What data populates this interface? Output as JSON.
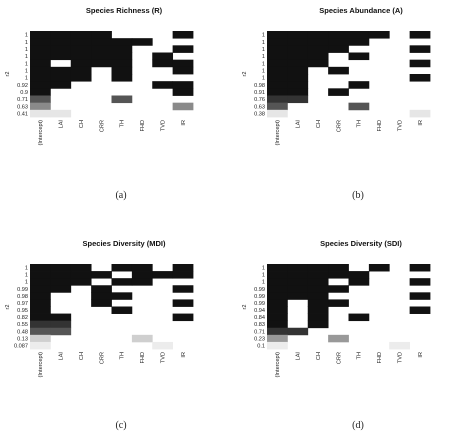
{
  "chart_data": [
    {
      "type": "heatmap",
      "title": "Species Richness (R)",
      "ylabel": "r2",
      "caption": "(a)",
      "columns": [
        "(Intercept)",
        "LAI",
        "CH",
        "CRR",
        "TH",
        "FHD",
        "TVD",
        "IR"
      ],
      "rows": [
        {
          "r2": "1",
          "tone": "#111111",
          "cells": [
            1,
            1,
            1,
            1,
            0,
            0,
            0,
            1
          ]
        },
        {
          "r2": "1",
          "tone": "#111111",
          "cells": [
            1,
            1,
            1,
            1,
            1,
            1,
            0,
            0
          ]
        },
        {
          "r2": "1",
          "tone": "#111111",
          "cells": [
            1,
            1,
            1,
            1,
            1,
            0,
            0,
            1
          ]
        },
        {
          "r2": "1",
          "tone": "#111111",
          "cells": [
            1,
            1,
            1,
            1,
            1,
            0,
            1,
            0
          ]
        },
        {
          "r2": "1",
          "tone": "#111111",
          "cells": [
            1,
            0,
            1,
            1,
            1,
            0,
            1,
            1
          ]
        },
        {
          "r2": "1",
          "tone": "#111111",
          "cells": [
            1,
            1,
            1,
            0,
            1,
            0,
            0,
            1
          ]
        },
        {
          "r2": "1",
          "tone": "#111111",
          "cells": [
            1,
            1,
            1,
            0,
            1,
            0,
            0,
            0
          ]
        },
        {
          "r2": "0.92",
          "tone": "#111111",
          "cells": [
            1,
            1,
            0,
            0,
            0,
            0,
            1,
            1
          ]
        },
        {
          "r2": "0.9",
          "tone": "#111111",
          "cells": [
            1,
            0,
            0,
            0,
            0,
            0,
            0,
            1
          ]
        },
        {
          "r2": "0.71",
          "tone": "#555555",
          "cells": [
            1,
            0,
            0,
            0,
            1,
            0,
            0,
            0
          ]
        },
        {
          "r2": "0.63",
          "tone": "#8a8a8a",
          "cells": [
            1,
            0,
            0,
            0,
            0,
            0,
            0,
            1
          ]
        },
        {
          "r2": "0.41",
          "tone": "#e6e6e6",
          "cells": [
            1,
            1,
            0,
            0,
            0,
            0,
            0,
            0
          ]
        }
      ]
    },
    {
      "type": "heatmap",
      "title": "Species Abundance (A)",
      "ylabel": "r2",
      "caption": "(b)",
      "columns": [
        "(Intercept)",
        "LAI",
        "CH",
        "CRR",
        "TH",
        "FHD",
        "TVD",
        "IR"
      ],
      "rows": [
        {
          "r2": "1",
          "tone": "#111111",
          "cells": [
            1,
            1,
            1,
            1,
            1,
            1,
            0,
            1
          ]
        },
        {
          "r2": "1",
          "tone": "#111111",
          "cells": [
            1,
            1,
            1,
            1,
            1,
            0,
            0,
            0
          ]
        },
        {
          "r2": "1",
          "tone": "#111111",
          "cells": [
            1,
            1,
            1,
            1,
            0,
            0,
            0,
            1
          ]
        },
        {
          "r2": "1",
          "tone": "#111111",
          "cells": [
            1,
            1,
            1,
            0,
            1,
            0,
            0,
            0
          ]
        },
        {
          "r2": "1",
          "tone": "#111111",
          "cells": [
            1,
            1,
            1,
            0,
            0,
            0,
            0,
            1
          ]
        },
        {
          "r2": "1",
          "tone": "#111111",
          "cells": [
            1,
            1,
            0,
            1,
            0,
            0,
            0,
            0
          ]
        },
        {
          "r2": "1",
          "tone": "#111111",
          "cells": [
            1,
            1,
            0,
            0,
            0,
            0,
            0,
            1
          ]
        },
        {
          "r2": "0.98",
          "tone": "#111111",
          "cells": [
            1,
            1,
            0,
            0,
            1,
            0,
            0,
            0
          ]
        },
        {
          "r2": "0.91",
          "tone": "#111111",
          "cells": [
            1,
            1,
            0,
            1,
            0,
            0,
            0,
            0
          ]
        },
        {
          "r2": "0.76",
          "tone": "#333333",
          "cells": [
            1,
            1,
            0,
            0,
            0,
            0,
            0,
            0
          ]
        },
        {
          "r2": "0.63",
          "tone": "#555555",
          "cells": [
            1,
            0,
            0,
            0,
            1,
            0,
            0,
            0
          ]
        },
        {
          "r2": "0.38",
          "tone": "#e6e6e6",
          "cells": [
            1,
            0,
            0,
            0,
            0,
            0,
            0,
            1
          ]
        }
      ]
    },
    {
      "type": "heatmap",
      "title": "Species Diversity (MDI)",
      "ylabel": "r2",
      "caption": "(c)",
      "columns": [
        "(Intercept)",
        "LAI",
        "CH",
        "CRR",
        "TH",
        "FHD",
        "TVD",
        "IR"
      ],
      "rows": [
        {
          "r2": "1",
          "tone": "#111111",
          "cells": [
            1,
            1,
            1,
            0,
            1,
            1,
            0,
            1
          ]
        },
        {
          "r2": "1",
          "tone": "#111111",
          "cells": [
            1,
            1,
            1,
            1,
            0,
            1,
            1,
            1
          ]
        },
        {
          "r2": "1",
          "tone": "#111111",
          "cells": [
            1,
            1,
            1,
            0,
            1,
            1,
            0,
            0
          ]
        },
        {
          "r2": "0.99",
          "tone": "#111111",
          "cells": [
            1,
            1,
            0,
            1,
            0,
            0,
            0,
            1
          ]
        },
        {
          "r2": "0.98",
          "tone": "#111111",
          "cells": [
            1,
            0,
            0,
            1,
            1,
            0,
            0,
            0
          ]
        },
        {
          "r2": "0.97",
          "tone": "#111111",
          "cells": [
            1,
            0,
            0,
            1,
            0,
            0,
            0,
            1
          ]
        },
        {
          "r2": "0.95",
          "tone": "#111111",
          "cells": [
            1,
            0,
            0,
            0,
            1,
            0,
            0,
            0
          ]
        },
        {
          "r2": "0.82",
          "tone": "#111111",
          "cells": [
            1,
            1,
            0,
            0,
            0,
            0,
            0,
            1
          ]
        },
        {
          "r2": "0.55",
          "tone": "#333333",
          "cells": [
            1,
            1,
            0,
            0,
            0,
            0,
            0,
            0
          ]
        },
        {
          "r2": "0.48",
          "tone": "#555555",
          "cells": [
            1,
            1,
            0,
            0,
            0,
            0,
            0,
            0
          ]
        },
        {
          "r2": "0.13",
          "tone": "#cfcfcf",
          "cells": [
            1,
            0,
            0,
            0,
            0,
            1,
            0,
            0
          ]
        },
        {
          "r2": "0.087",
          "tone": "#ececec",
          "cells": [
            1,
            0,
            0,
            0,
            0,
            0,
            1,
            0
          ]
        }
      ]
    },
    {
      "type": "heatmap",
      "title": "Species Diversity (SDI)",
      "ylabel": "r2",
      "caption": "(d)",
      "columns": [
        "(Intercept)",
        "LAI",
        "CH",
        "CRR",
        "TH",
        "FHD",
        "TVD",
        "IR"
      ],
      "rows": [
        {
          "r2": "1",
          "tone": "#111111",
          "cells": [
            1,
            1,
            1,
            1,
            0,
            1,
            0,
            1
          ]
        },
        {
          "r2": "1",
          "tone": "#111111",
          "cells": [
            1,
            1,
            1,
            1,
            1,
            0,
            0,
            0
          ]
        },
        {
          "r2": "1",
          "tone": "#111111",
          "cells": [
            1,
            1,
            1,
            0,
            1,
            0,
            0,
            1
          ]
        },
        {
          "r2": "0.99",
          "tone": "#111111",
          "cells": [
            1,
            1,
            1,
            1,
            0,
            0,
            0,
            0
          ]
        },
        {
          "r2": "0.99",
          "tone": "#111111",
          "cells": [
            1,
            1,
            1,
            0,
            0,
            0,
            0,
            1
          ]
        },
        {
          "r2": "0.99",
          "tone": "#111111",
          "cells": [
            1,
            0,
            1,
            1,
            0,
            0,
            0,
            0
          ]
        },
        {
          "r2": "0.94",
          "tone": "#111111",
          "cells": [
            1,
            0,
            1,
            0,
            0,
            0,
            0,
            1
          ]
        },
        {
          "r2": "0.84",
          "tone": "#111111",
          "cells": [
            1,
            0,
            1,
            0,
            1,
            0,
            0,
            0
          ]
        },
        {
          "r2": "0.83",
          "tone": "#111111",
          "cells": [
            1,
            0,
            1,
            0,
            0,
            0,
            0,
            0
          ]
        },
        {
          "r2": "0.71",
          "tone": "#333333",
          "cells": [
            1,
            1,
            0,
            0,
            0,
            0,
            0,
            0
          ]
        },
        {
          "r2": "0.23",
          "tone": "#999999",
          "cells": [
            1,
            0,
            0,
            1,
            0,
            0,
            0,
            0
          ]
        },
        {
          "r2": "0.1",
          "tone": "#ececec",
          "cells": [
            1,
            0,
            0,
            0,
            0,
            0,
            1,
            0
          ]
        }
      ]
    }
  ]
}
